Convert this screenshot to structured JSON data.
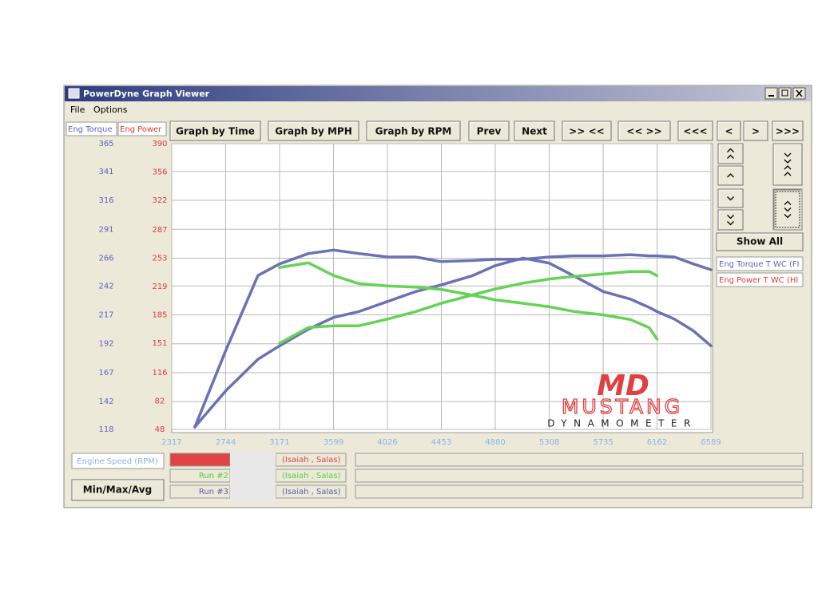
{
  "window": {
    "title": "PowerDyne Graph Viewer",
    "menu": [
      "File",
      "Options"
    ]
  },
  "tabs": [
    {
      "text": "Eng Torque",
      "color": "#5a66c0"
    },
    {
      "text": "Eng Power",
      "color": "#e03a3a"
    }
  ],
  "toolbar": [
    "Graph by Time",
    "Graph by MPH",
    "Graph by RPM",
    "Prev",
    "Next",
    ">> <<",
    "<< >>",
    "<<<",
    "<",
    ">",
    ">>>"
  ],
  "side": {
    "show_all": "Show All",
    "legend": [
      {
        "text": "Eng Torque T WC (FI",
        "color": "#5a66c0"
      },
      {
        "text": "Eng Power T WC (HI",
        "color": "#e03a3a"
      }
    ]
  },
  "bottom": {
    "axis_label": "Engine Speed (RPM)",
    "button": "Min/Max/Avg",
    "runs": [
      {
        "color": "#e04545",
        "driver": "(Isaiah , Salas)"
      },
      {
        "label": "Run #2",
        "color": "#55d040",
        "driver": "(Isaiah , Salas)"
      },
      {
        "label": "Run #3",
        "color": "#5a5fb0",
        "driver": "(Isaiah , Salas)"
      }
    ]
  },
  "logo": {
    "mark": "MD",
    "name": "MUSTANG",
    "sub": "DYNAMOMETER"
  },
  "chart_data": {
    "type": "line",
    "x": [
      2500,
      2744,
      3000,
      3171,
      3400,
      3599,
      3800,
      4026,
      4250,
      4453,
      4700,
      4880,
      5100,
      5308,
      5500,
      5735,
      5950,
      6100,
      6162,
      6300,
      6450,
      6589
    ],
    "xlim": [
      2317,
      6589
    ],
    "xticks": [
      2317,
      2744,
      3171,
      3599,
      4026,
      4453,
      4880,
      5308,
      5735,
      6162,
      6589
    ],
    "ylim": [
      118,
      365
    ],
    "yticks": [
      118,
      142,
      167,
      192,
      217,
      242,
      266,
      291,
      316,
      341,
      365
    ],
    "y2lim": [
      48,
      390
    ],
    "y2ticks": [
      48,
      82,
      116,
      151,
      185,
      219,
      253,
      287,
      322,
      356,
      390
    ],
    "ytick_color": "#5a66c0",
    "y2tick_color": "#e03a3a",
    "xtick_color": "#8ab4e8",
    "grid": true,
    "series": [
      {
        "color": "#6a72b4",
        "values": [
          120,
          186,
          251,
          261,
          270,
          273,
          270,
          267,
          267,
          263,
          264,
          265,
          265,
          267,
          268,
          268,
          269,
          268,
          268,
          267,
          261,
          256
        ]
      },
      {
        "color": "#6a72b4",
        "axis": "y2",
        "values": [
          51,
          94,
          132,
          148,
          168,
          182,
          189,
          201,
          213,
          221,
          232,
          244,
          253,
          247,
          232,
          213,
          204,
          194,
          189,
          180,
          166,
          148
        ]
      },
      {
        "color": "#66d256",
        "values": [
          null,
          null,
          null,
          258,
          262,
          251,
          244,
          242,
          241,
          239,
          234,
          230,
          227,
          224,
          220,
          217,
          213,
          206,
          196,
          null,
          null,
          null
        ]
      },
      {
        "color": "#66d256",
        "axis": "y2",
        "values": [
          null,
          null,
          null,
          151,
          170,
          172,
          172,
          180,
          189,
          199,
          209,
          216,
          223,
          228,
          231,
          234,
          237,
          237,
          232,
          null,
          null,
          null
        ]
      }
    ]
  }
}
